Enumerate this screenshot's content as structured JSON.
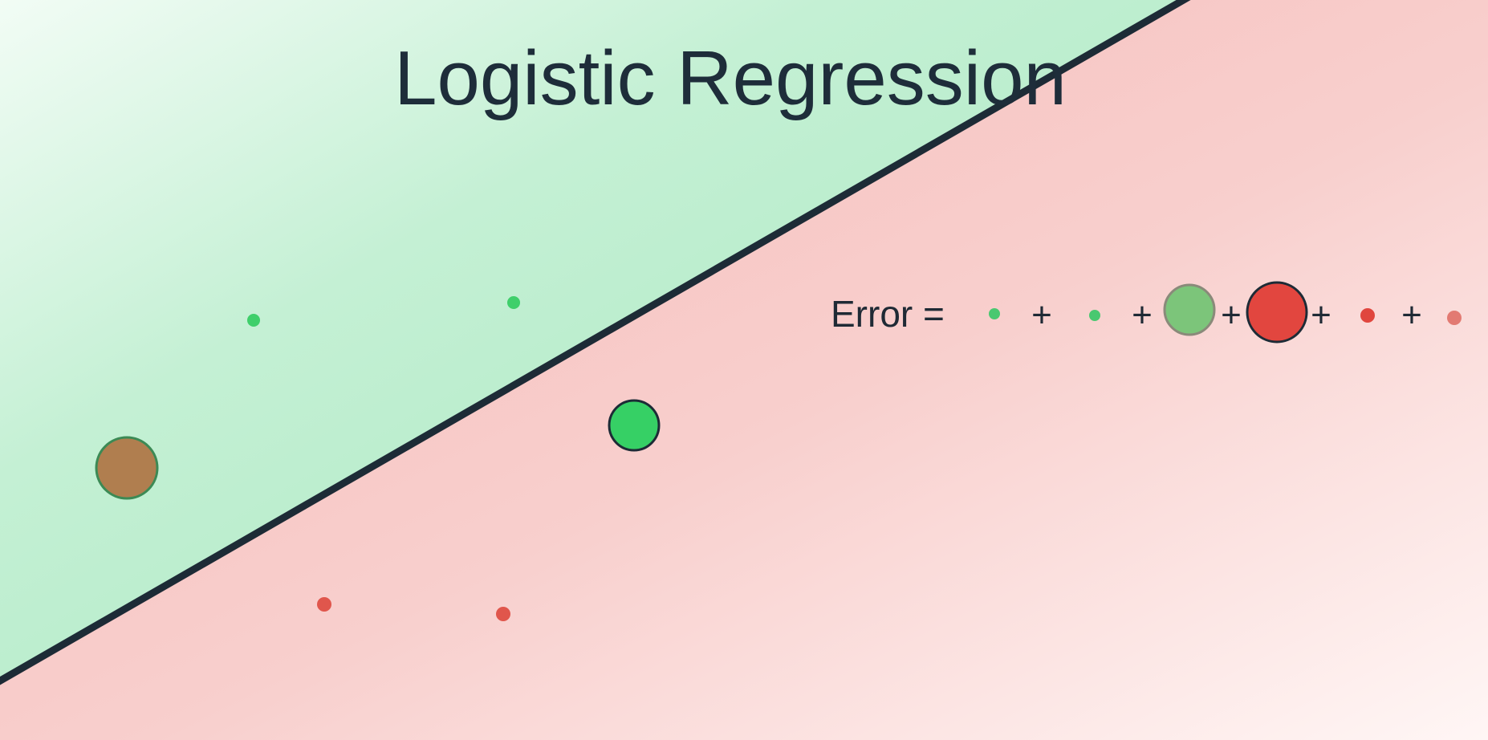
{
  "title": "Logistic Regression",
  "formula": {
    "label": "Error =",
    "plus": "+"
  },
  "colors": {
    "positive_region": "#a9e9c4",
    "negative_region": "#f7c3c1",
    "positive_point": "#3ecf6a",
    "negative_point": "#e14c42",
    "misclassified_positive": "#b07e4f",
    "boundary_line": "#1d2b36"
  },
  "legend_terms": [
    {
      "class": "positive",
      "size": "small",
      "style": "faded"
    },
    {
      "class": "positive",
      "size": "small",
      "style": "faded"
    },
    {
      "class": "positive",
      "size": "large",
      "style": "faded"
    },
    {
      "class": "negative",
      "size": "large",
      "style": "outlined"
    },
    {
      "class": "negative",
      "size": "small",
      "style": "solid"
    },
    {
      "class": "negative",
      "size": "small",
      "style": "faded"
    }
  ],
  "points": [
    {
      "class": "positive",
      "size": "small",
      "region": "positive"
    },
    {
      "class": "positive",
      "size": "small",
      "region": "positive"
    },
    {
      "class": "misclassified",
      "size": "large",
      "region": "positive"
    },
    {
      "class": "positive",
      "size": "large",
      "region": "negative"
    },
    {
      "class": "negative",
      "size": "small",
      "region": "negative"
    },
    {
      "class": "negative",
      "size": "small",
      "region": "negative"
    }
  ]
}
